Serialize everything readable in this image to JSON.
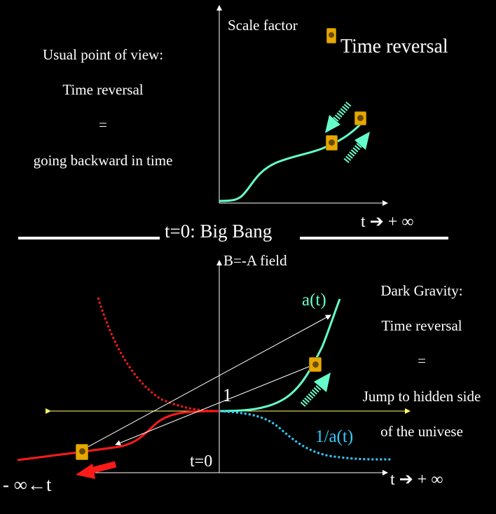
{
  "top": {
    "y_label": "Scale factor",
    "legend_label": "Time reversal",
    "x_label": "t ➔ + ∞",
    "left_text": {
      "line1": "Usual point of view:",
      "line2": "Time reversal",
      "line3": "=",
      "line4": "going backward in time"
    }
  },
  "divider_label": "t=0: Big Bang",
  "bottom": {
    "y_label": "B=-A field",
    "one_label": "1",
    "t0_label": "t=0",
    "x_label_right": "t ➔ + ∞",
    "x_label_left": "- ∞←t",
    "a_label": "a(t)",
    "inv_label": "1/a(t)",
    "right_text": {
      "line1": "Dark Gravity:",
      "line2": "Time reversal",
      "line3": "=",
      "line4": "Jump to hidden side",
      "line5": "of  the univese"
    }
  },
  "colors": {
    "background": "#000000",
    "curve_cyan": "#66ffcc",
    "curve_red": "#ff1a1a",
    "axis_yellow": "#ffff66",
    "icon_gold": "#e6a800",
    "text": "#ffffff"
  }
}
